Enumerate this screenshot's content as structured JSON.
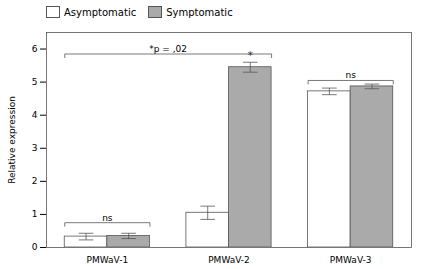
{
  "chart_data": {
    "type": "bar",
    "categories": [
      "PMWaV-1",
      "PMWaV-2",
      "PMWaV-3"
    ],
    "series": [
      {
        "name": "Asymptomatic",
        "color": "#ffffff",
        "values": [
          0.33,
          1.05,
          4.72
        ],
        "errors": [
          0.1,
          0.2,
          0.1
        ]
      },
      {
        "name": "Symptomatic",
        "color": "#aaaaaa",
        "values": [
          0.35,
          5.45,
          4.87
        ],
        "errors": [
          0.08,
          0.15,
          0.07
        ]
      }
    ],
    "ylabel": "Relative expression",
    "ylim": [
      0,
      6.5
    ],
    "yticks": [
      0,
      1,
      2,
      3,
      4,
      5,
      6
    ],
    "legend": "upper left",
    "grid": false,
    "annotations": [
      {
        "text": "ns",
        "y": 0.75,
        "from": "PMWaV-1",
        "to": "PMWaV-1"
      },
      {
        "text": "*p = ,02",
        "y": 5.85,
        "from": "PMWaV-1",
        "to": "PMWaV-2"
      },
      {
        "text": "*",
        "y": 5.7,
        "at": "PMWaV-2",
        "series": "Symptomatic"
      },
      {
        "text": "ns",
        "y": 5.05,
        "from": "PMWaV-3",
        "to": "PMWaV-3"
      }
    ]
  }
}
